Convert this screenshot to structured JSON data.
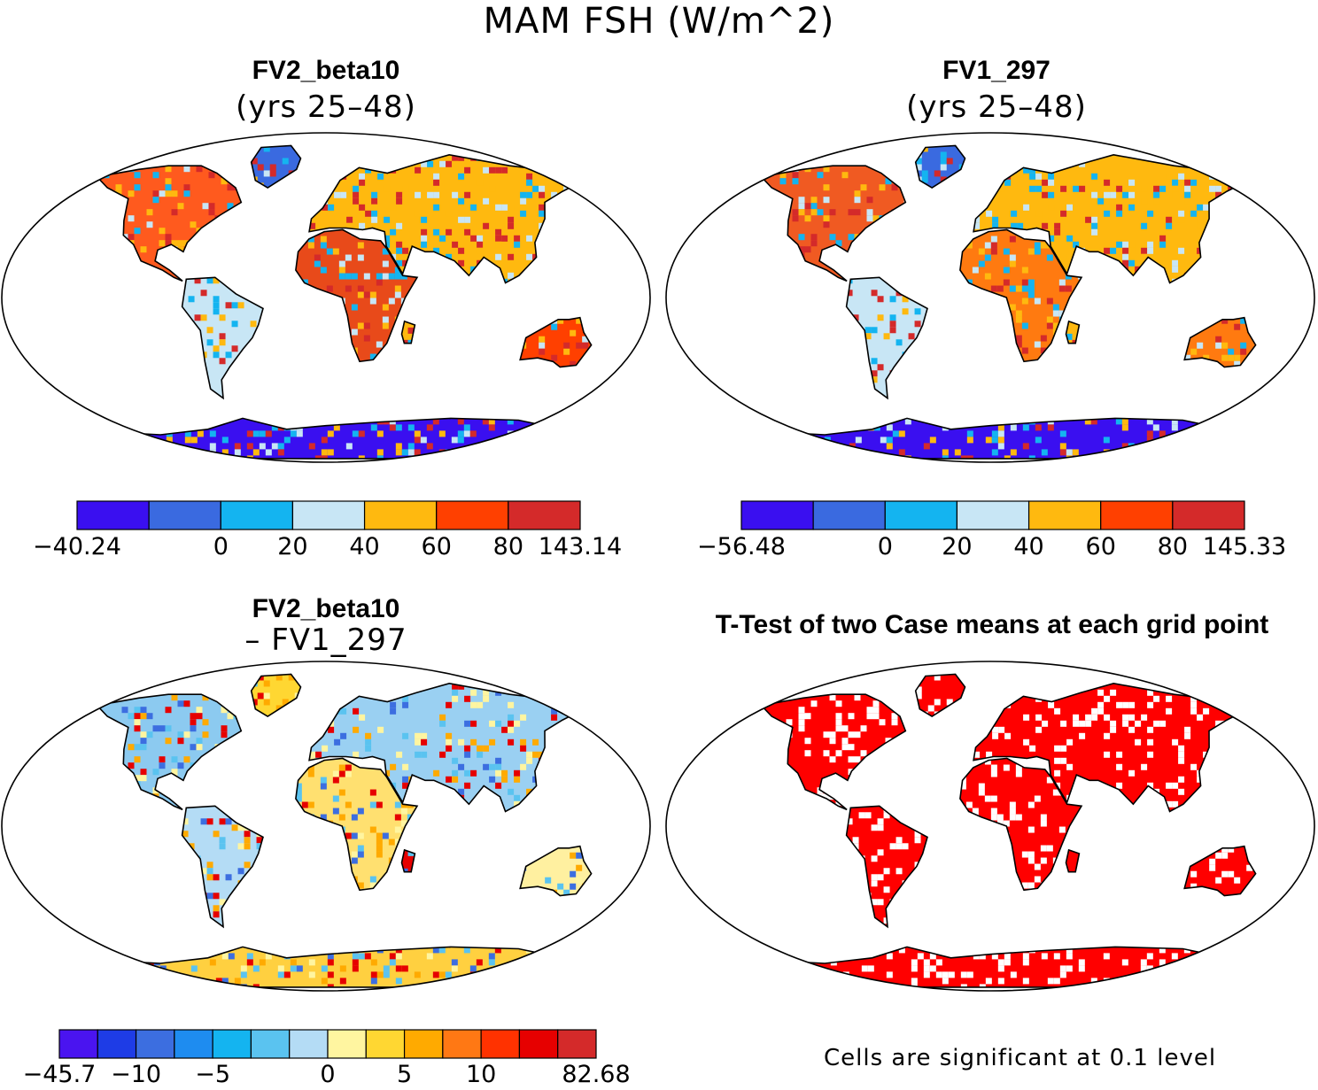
{
  "title": "MAM FSH (W/m^2)",
  "panels": [
    {
      "id": "a",
      "title": "FV2_beta10",
      "subtitle": "(yrs 25–48)"
    },
    {
      "id": "b",
      "title": "FV1_297",
      "subtitle": "(yrs 25–48)"
    },
    {
      "id": "c",
      "title": "FV2_beta10",
      "subtitle": "– FV1_297"
    },
    {
      "id": "d",
      "title": "T-Test of two Case means at each grid point",
      "subtitle": ""
    }
  ],
  "footnote": "Cells are significant at 0.1 level",
  "chart_data": [
    {
      "type": "heatmap",
      "title": "FV2_beta10 (yrs 25–48)",
      "projection": "Robinson world map",
      "colorbar": {
        "colors": [
          "#3a0ff0",
          "#3a6ae0",
          "#14b4f0",
          "#c8e6f5",
          "#ffb90f",
          "#ff4000",
          "#d42a2a"
        ],
        "boundaries": [
          "−40.24",
          "",
          "0",
          "20",
          "40",
          "60",
          "80",
          "143.14"
        ]
      }
    },
    {
      "type": "heatmap",
      "title": "FV1_297 (yrs 25–48)",
      "projection": "Robinson world map",
      "colorbar": {
        "colors": [
          "#3a0ff0",
          "#3a6ae0",
          "#14b4f0",
          "#c8e6f5",
          "#ffb90f",
          "#ff4000",
          "#d42a2a"
        ],
        "boundaries": [
          "−56.48",
          "",
          "0",
          "20",
          "40",
          "60",
          "80",
          "145.33"
        ]
      }
    },
    {
      "type": "heatmap",
      "title": "FV2_beta10 – FV1_297",
      "projection": "Robinson world map",
      "colorbar": {
        "colors": [
          "#4a14f0",
          "#1e3ce6",
          "#3c6ee0",
          "#1e8cf0",
          "#14b4f0",
          "#5ac3f0",
          "#b4dcf5",
          "#fff5a0",
          "#ffd732",
          "#ffaa00",
          "#ff7814",
          "#ff3200",
          "#e60000",
          "#d42a2a"
        ],
        "boundaries": [
          "−45.7",
          "",
          "−10",
          "",
          "−5",
          "",
          "",
          "0",
          "",
          "5",
          "",
          "10",
          "",
          "",
          "82.68"
        ]
      }
    },
    {
      "type": "heatmap",
      "title": "T-Test of two Case means at each grid point",
      "projection": "Robinson world map",
      "note": "Cells are significant at 0.1 level",
      "colorbar": {
        "colors": [
          "#ff0000"
        ],
        "boundaries": []
      }
    }
  ]
}
